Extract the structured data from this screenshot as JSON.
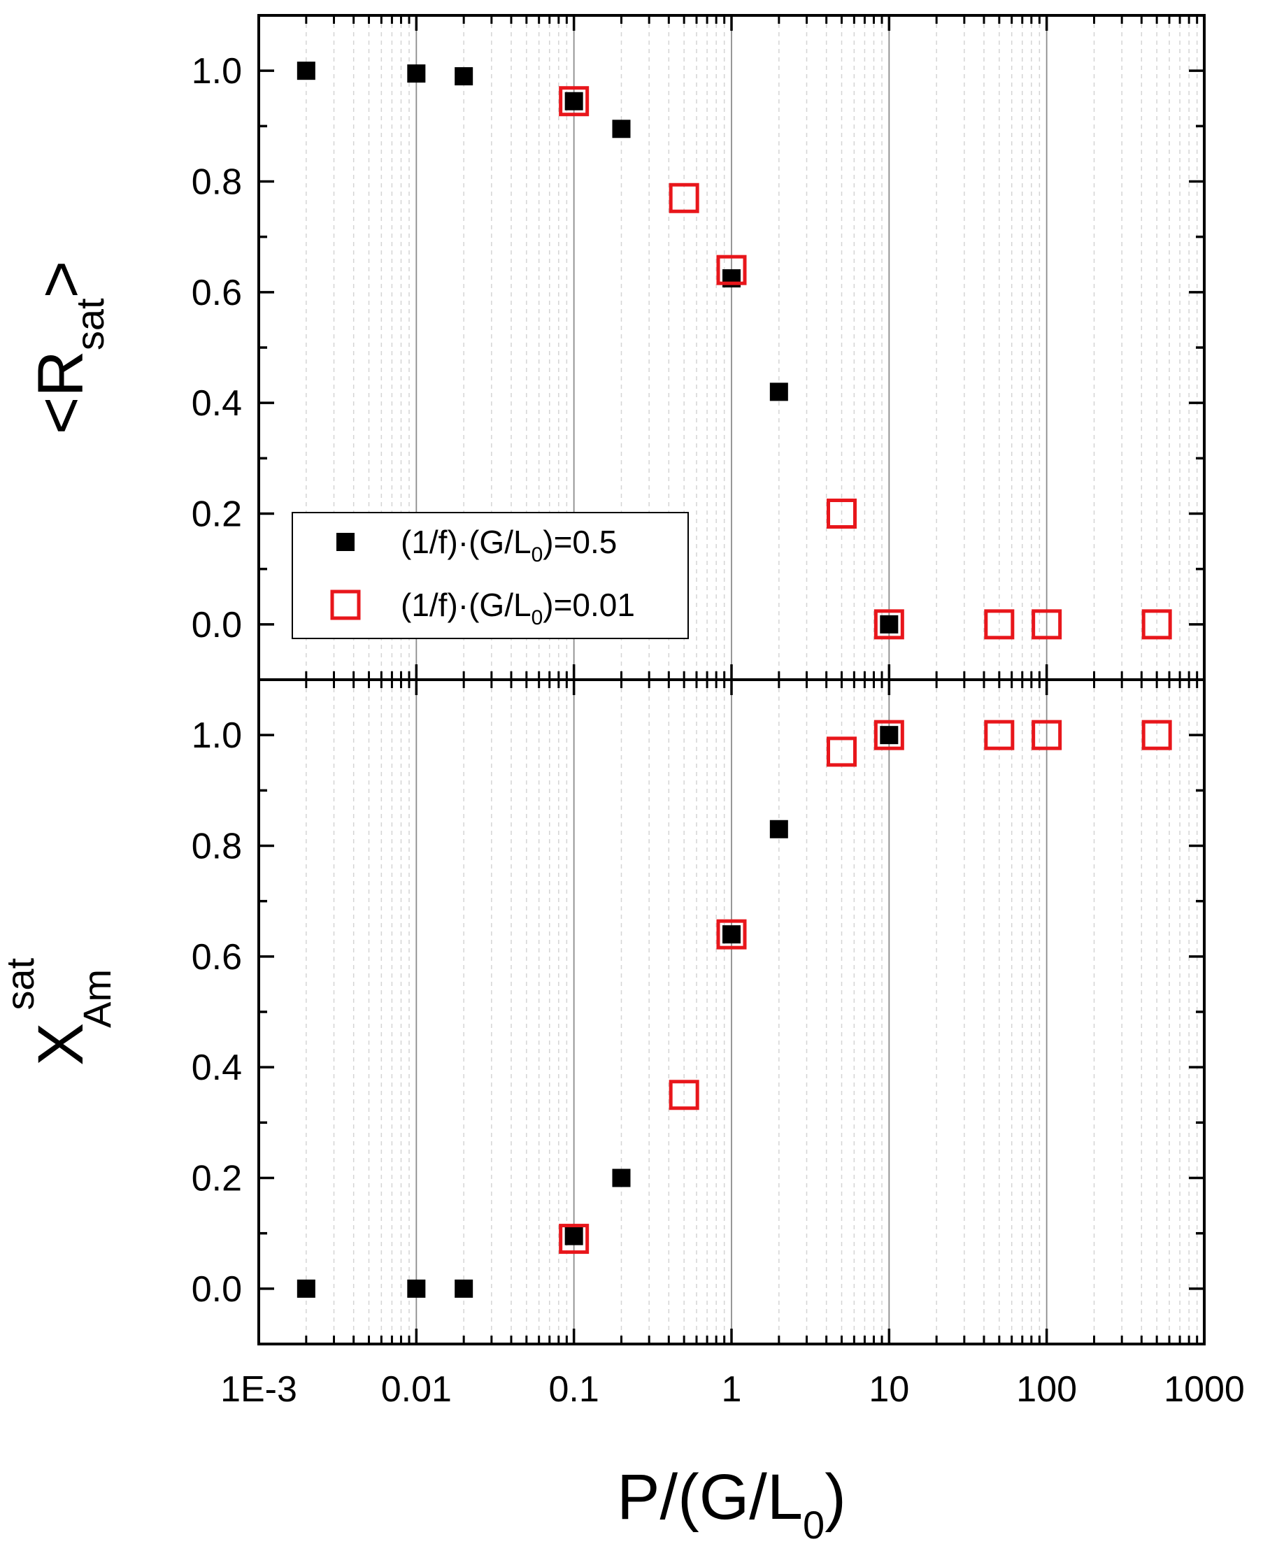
{
  "chart_data": {
    "type": "scatter",
    "x_scale": "log",
    "xlim": [
      0.001,
      1000
    ],
    "x_ticks": [
      {
        "value": 0.001,
        "label": "1E-3"
      },
      {
        "value": 0.01,
        "label": "0.01"
      },
      {
        "value": 0.1,
        "label": "0.1"
      },
      {
        "value": 1,
        "label": "1"
      },
      {
        "value": 10,
        "label": "10"
      },
      {
        "value": 100,
        "label": "100"
      },
      {
        "value": 1000,
        "label": "1000"
      }
    ],
    "xlabel": {
      "main": "P/(G/L",
      "sub": "0",
      "end": ")"
    },
    "legend": {
      "placement": "lower-left of top panel",
      "entries": [
        {
          "series": "s1",
          "text": "(1/f)·(G/L",
          "sub": "0",
          "end": ")=0.5",
          "marker": "filled-square",
          "color": "#000000"
        },
        {
          "series": "s2",
          "text": "(1/f)·(G/L",
          "sub": "0",
          "end": ")=0.01",
          "marker": "open-square",
          "color": "#e8161b"
        }
      ]
    },
    "panels": [
      {
        "id": "top",
        "ylabel": {
          "main": "<R",
          "sub": "sat",
          "end": ">"
        },
        "ylim": [
          -0.1,
          1.1
        ],
        "y_ticks": [
          {
            "value": 0.0,
            "label": "0.0"
          },
          {
            "value": 0.2,
            "label": "0.2"
          },
          {
            "value": 0.4,
            "label": "0.4"
          },
          {
            "value": 0.6,
            "label": "0.6"
          },
          {
            "value": 0.8,
            "label": "0.8"
          },
          {
            "value": 1.0,
            "label": "1.0"
          }
        ],
        "series": [
          {
            "id": "s1",
            "name": "(1/f)·(G/L0)=0.5",
            "marker": "filled-square",
            "color": "#000000",
            "x": [
              0.002,
              0.01,
              0.02,
              0.1,
              0.2,
              1,
              2,
              10
            ],
            "y": [
              1.0,
              0.995,
              0.99,
              0.945,
              0.895,
              0.625,
              0.42,
              0.0
            ]
          },
          {
            "id": "s2",
            "name": "(1/f)·(G/L0)=0.01",
            "marker": "open-square",
            "color": "#e8161b",
            "x": [
              0.1,
              0.5,
              1,
              5,
              10,
              50,
              100,
              500
            ],
            "y": [
              0.945,
              0.77,
              0.64,
              0.2,
              0.0,
              0.0,
              0.0,
              0.0
            ]
          }
        ]
      },
      {
        "id": "bottom",
        "ylabel": {
          "main": "X",
          "sub": "Am",
          "sup": "sat"
        },
        "ylim": [
          -0.1,
          1.1
        ],
        "y_ticks": [
          {
            "value": 0.0,
            "label": "0.0"
          },
          {
            "value": 0.2,
            "label": "0.2"
          },
          {
            "value": 0.4,
            "label": "0.4"
          },
          {
            "value": 0.6,
            "label": "0.6"
          },
          {
            "value": 0.8,
            "label": "0.8"
          },
          {
            "value": 1.0,
            "label": "1.0"
          }
        ],
        "series": [
          {
            "id": "s1",
            "name": "(1/f)·(G/L0)=0.5",
            "marker": "filled-square",
            "color": "#000000",
            "x": [
              0.002,
              0.01,
              0.02,
              0.1,
              0.2,
              1,
              2,
              10
            ],
            "y": [
              0.0,
              0.0,
              0.0,
              0.095,
              0.2,
              0.64,
              0.83,
              1.0
            ]
          },
          {
            "id": "s2",
            "name": "(1/f)·(G/L0)=0.01",
            "marker": "open-square",
            "color": "#e8161b",
            "x": [
              0.1,
              0.5,
              1,
              5,
              10,
              50,
              100,
              500
            ],
            "y": [
              0.09,
              0.35,
              0.64,
              0.97,
              1.0,
              1.0,
              1.0,
              1.0
            ]
          }
        ]
      }
    ]
  }
}
